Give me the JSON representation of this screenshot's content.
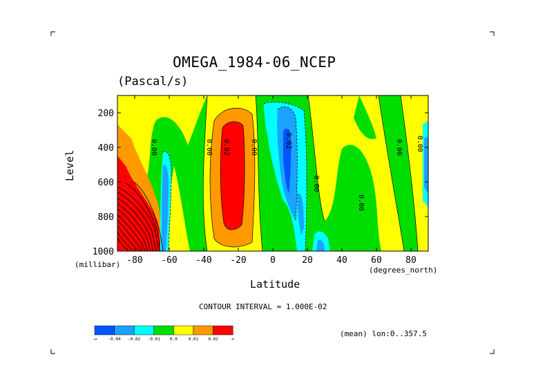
{
  "chart_data": {
    "type": "heatmap",
    "title": "OMEGA_1984-06_NCEP",
    "units": "(Pascal/s)",
    "xlabel": "Latitude",
    "ylabel": "Level",
    "x_unit_label": "(degrees_north)",
    "y_unit_label": "(millibar)",
    "xlim": [
      -90,
      90
    ],
    "ylim": [
      1000,
      100
    ],
    "x_ticks": [
      -80,
      -60,
      -40,
      -20,
      0,
      20,
      40,
      60,
      80
    ],
    "y_ticks": [
      200,
      400,
      600,
      800,
      1000
    ],
    "contour_interval_text": "CONTOUR INTERVAL = 1.000E-02",
    "mean_text": "(mean) lon:0..357.5",
    "contour_labels": [
      {
        "text": "0.00",
        "lat": -70,
        "level": 400
      },
      {
        "text": "0.00",
        "lat": -38,
        "level": 400
      },
      {
        "text": "0.02",
        "lat": -28,
        "level": 400
      },
      {
        "text": "0.00",
        "lat": -12,
        "level": 400
      },
      {
        "text": "-0.02",
        "lat": 8,
        "level": 350
      },
      {
        "text": "0.00",
        "lat": 24,
        "level": 610
      },
      {
        "text": "0.00",
        "lat": 50,
        "level": 720
      },
      {
        "text": "0.00",
        "lat": 72,
        "level": 400
      },
      {
        "text": "0.00",
        "lat": 84,
        "level": 380
      }
    ],
    "colorbar": {
      "colors": [
        "#0055ff",
        "#1aa3ff",
        "#00ffff",
        "#00dd00",
        "#ffff00",
        "#ff9900",
        "#ff0000"
      ],
      "labels": [
        "-∞",
        "-0.04",
        "-0.02",
        "-0.01",
        "0.0",
        "0.01",
        "0.02",
        "∞"
      ]
    },
    "regions": [
      {
        "level_bin": "-inf to -0.04",
        "color": "#0055ff",
        "areas": [
          "10N 200-700mb core",
          "28N near 1000mb"
        ]
      },
      {
        "level_bin": "-0.04 to -0.02",
        "color": "#1aa3ff",
        "areas": [
          "5-15N 150-850mb",
          "-65 to -60 lower levels",
          "-55 to -52 near surface",
          "88N 200-700mb"
        ]
      },
      {
        "level_bin": "-0.02 to -0.01",
        "color": "#00ffff",
        "areas": [
          "0-20N 100-1000mb",
          "-65 to -58 300-1000mb"
        ]
      },
      {
        "level_bin": "-0.01 to 0.0",
        "color": "#00dd00",
        "areas": [
          "background descent/ascent transitions"
        ]
      },
      {
        "level_bin": "0.0 to 0.01",
        "color": "#ffff00",
        "areas": [
          "-50 to -10 upper levels",
          "30-90N upper levels",
          "60-85N mid levels"
        ]
      },
      {
        "level_bin": "0.01 to 0.02",
        "color": "#ff9900",
        "areas": [
          "-38 to -18 250-960mb",
          "-90 to -80 lower levels"
        ]
      },
      {
        "level_bin": "0.02 to inf",
        "color": "#ff0000",
        "areas": [
          "-32 to -20 250-880mb",
          "-90 to -70 500-1000mb"
        ]
      }
    ]
  }
}
